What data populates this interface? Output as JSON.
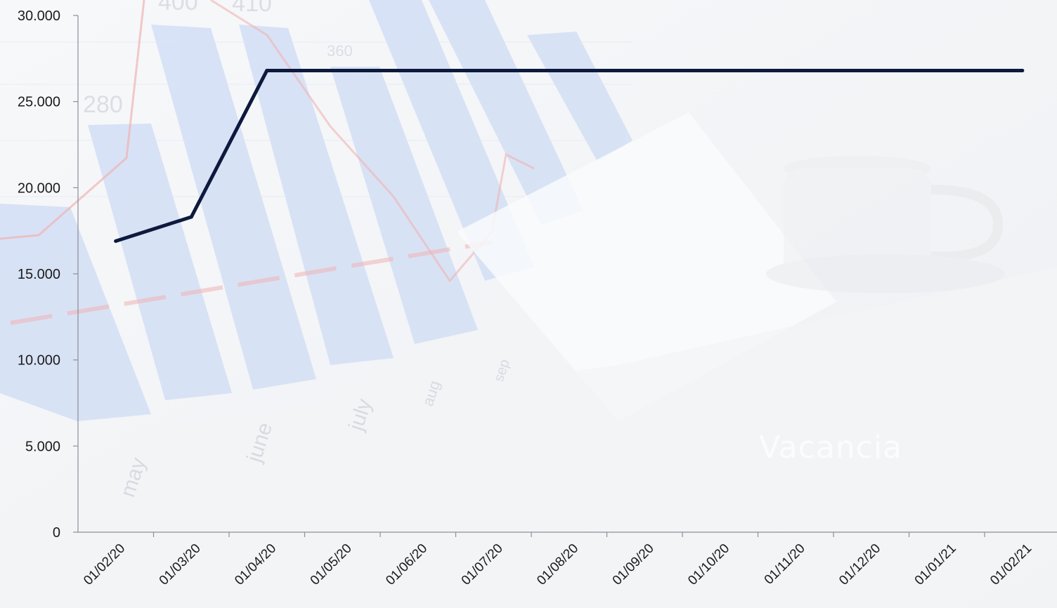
{
  "chart_data": {
    "type": "line",
    "title": "",
    "xlabel": "",
    "ylabel": "",
    "categories": [
      "01/02/20",
      "01/03/20",
      "01/04/20",
      "01/05/20",
      "01/06/20",
      "01/07/20",
      "01/08/20",
      "01/09/20",
      "01/10/20",
      "01/11/20",
      "01/12/20",
      "01/01/21",
      "01/02/21"
    ],
    "series": [
      {
        "values": [
          16900,
          18300,
          26800,
          26800,
          26800,
          26800,
          26800,
          26800,
          26800,
          26800,
          26800,
          26800,
          26800
        ]
      }
    ],
    "y_ticks": [
      "0",
      "5.000",
      "10.000",
      "15.000",
      "20.000",
      "25.000",
      "30.000"
    ],
    "ylim": [
      0,
      30000
    ],
    "grid": false,
    "legend": "none",
    "line_color": "#0d1a3d"
  },
  "background": {
    "watermark_text": "Vacancia",
    "bar_labels": [
      "may",
      "june",
      "july",
      "aug",
      "sep"
    ],
    "bar_value_labels": [
      "280",
      "400",
      "410",
      "360"
    ]
  }
}
